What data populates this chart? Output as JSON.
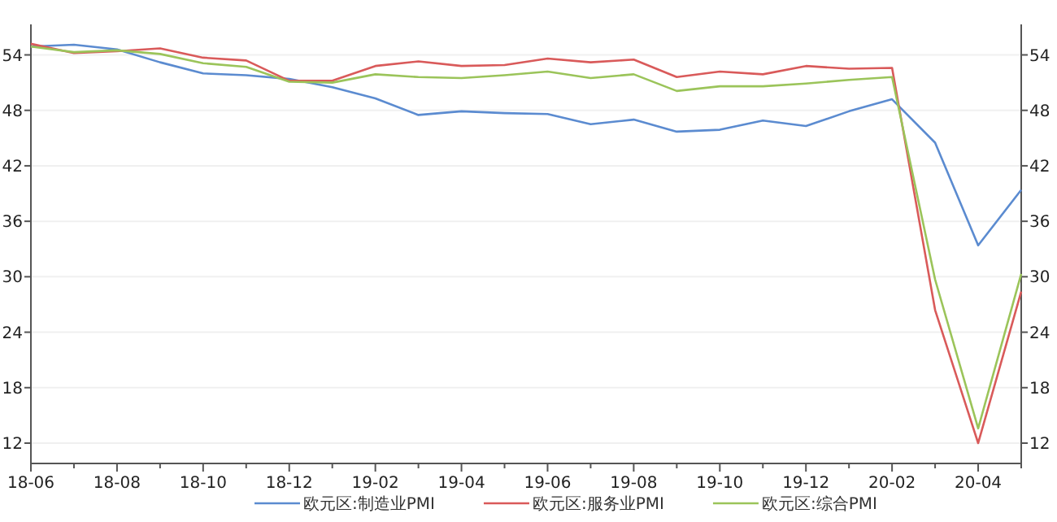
{
  "chart_data": {
    "type": "line",
    "categories": [
      "18-06",
      null,
      "18-08",
      null,
      "18-10",
      null,
      "18-12",
      null,
      "19-02",
      null,
      "19-04",
      null,
      "19-06",
      null,
      "19-08",
      null,
      "19-10",
      null,
      "19-12",
      null,
      "20-02",
      null,
      "20-04",
      null
    ],
    "series": [
      {
        "name": "欧元区:制造业PMI",
        "color": "#5b8bd0",
        "values": [
          54.9,
          55.1,
          54.6,
          53.2,
          52.0,
          51.8,
          51.4,
          50.5,
          49.3,
          47.5,
          47.9,
          47.7,
          47.6,
          46.5,
          47.0,
          45.7,
          45.9,
          46.9,
          46.3,
          47.9,
          49.2,
          44.5,
          33.4,
          39.4
        ]
      },
      {
        "name": "欧元区:服务业PMI",
        "color": "#d95a5a",
        "values": [
          55.2,
          54.2,
          54.4,
          54.7,
          53.7,
          53.4,
          51.2,
          51.2,
          52.8,
          53.3,
          52.8,
          52.9,
          53.6,
          53.2,
          53.5,
          51.6,
          52.2,
          51.9,
          52.8,
          52.5,
          52.6,
          26.4,
          12.0,
          28.4
        ]
      },
      {
        "name": "欧元区:综合PMI",
        "color": "#9bc45a",
        "values": [
          54.9,
          54.3,
          54.5,
          54.1,
          53.1,
          52.7,
          51.1,
          51.0,
          51.9,
          51.6,
          51.5,
          51.8,
          52.2,
          51.5,
          51.9,
          50.1,
          50.6,
          50.6,
          50.9,
          51.3,
          51.6,
          29.7,
          13.6,
          30.3
        ]
      }
    ],
    "ylim": [
      9.8,
      57.3
    ],
    "yticks": [
      12,
      18,
      24,
      30,
      36,
      42,
      48,
      54
    ],
    "y2lim": [
      9.8,
      57.3
    ],
    "y2ticks": [
      12,
      18,
      24,
      30,
      36,
      42,
      48,
      54
    ],
    "grid": "y",
    "legend": "bottom",
    "marker": "none",
    "line_style": "solid"
  }
}
